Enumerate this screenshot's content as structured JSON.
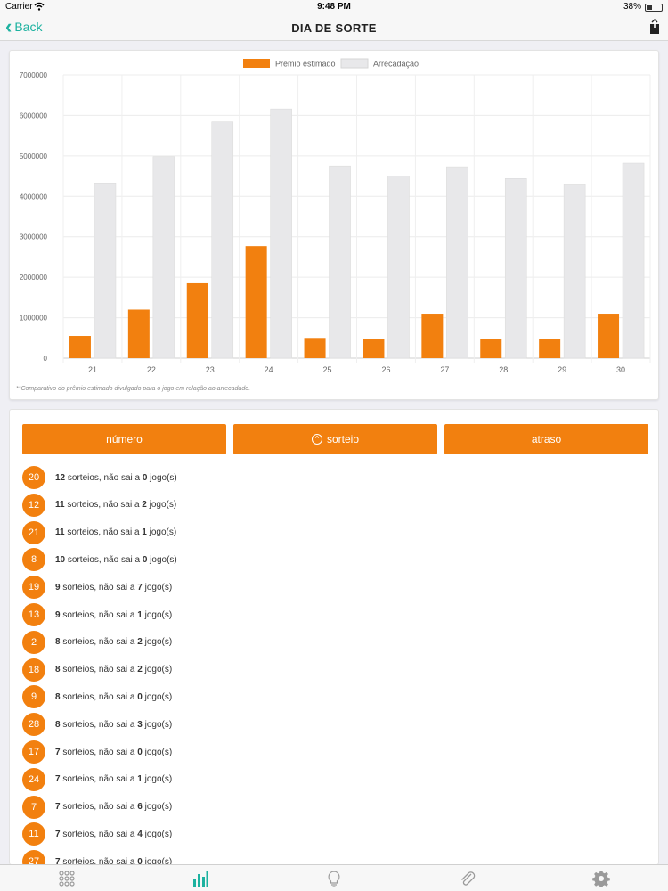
{
  "status_bar": {
    "carrier": "Carrier",
    "time": "9:48 PM",
    "battery": "38%",
    "battery_level": 0.38
  },
  "nav": {
    "back_label": "Back",
    "title": "DIA DE SORTE"
  },
  "chart_data": {
    "type": "bar",
    "categories": [
      "21",
      "22",
      "23",
      "24",
      "25",
      "26",
      "27",
      "28",
      "29",
      "30"
    ],
    "series": [
      {
        "name": "Prêmio estimado",
        "color": "#f2800f",
        "values": [
          550000,
          1200000,
          1850000,
          2770000,
          500000,
          470000,
          1100000,
          470000,
          470000,
          1100000
        ]
      },
      {
        "name": "Arrecadação",
        "color": "#e8e8ea",
        "values": [
          4330000,
          4980000,
          5840000,
          6160000,
          4750000,
          4500000,
          4730000,
          4440000,
          4290000,
          4820000
        ]
      }
    ],
    "y_ticks": [
      "0",
      "1000000",
      "2000000",
      "3000000",
      "4000000",
      "5000000",
      "6000000",
      "7000000"
    ],
    "ylim": [
      0,
      7000000
    ],
    "grid": true,
    "legend_position": "top-center",
    "note": "**Comparativo do prêmio estimado divulgado para o jogo em relação ao arrecadado."
  },
  "sort_buttons": [
    {
      "label": "número",
      "icon": ""
    },
    {
      "label": "sorteio",
      "icon": "chevron-up-circle-icon"
    },
    {
      "label": "atraso",
      "icon": ""
    }
  ],
  "ranking": [
    {
      "number": "20",
      "draws": "12",
      "draws_label": "sorteios, não sai a",
      "delay": "0",
      "delay_label": "jogo(s)"
    },
    {
      "number": "12",
      "draws": "11",
      "draws_label": "sorteios, não sai a",
      "delay": "2",
      "delay_label": "jogo(s)"
    },
    {
      "number": "21",
      "draws": "11",
      "draws_label": "sorteios, não sai a",
      "delay": "1",
      "delay_label": "jogo(s)"
    },
    {
      "number": "8",
      "draws": "10",
      "draws_label": "sorteios, não sai a",
      "delay": "0",
      "delay_label": "jogo(s)"
    },
    {
      "number": "19",
      "draws": "9",
      "draws_label": "sorteios, não sai a",
      "delay": "7",
      "delay_label": "jogo(s)"
    },
    {
      "number": "13",
      "draws": "9",
      "draws_label": "sorteios, não sai a",
      "delay": "1",
      "delay_label": "jogo(s)"
    },
    {
      "number": "2",
      "draws": "8",
      "draws_label": "sorteios, não sai a",
      "delay": "2",
      "delay_label": "jogo(s)"
    },
    {
      "number": "18",
      "draws": "8",
      "draws_label": "sorteios, não sai a",
      "delay": "2",
      "delay_label": "jogo(s)"
    },
    {
      "number": "9",
      "draws": "8",
      "draws_label": "sorteios, não sai a",
      "delay": "0",
      "delay_label": "jogo(s)"
    },
    {
      "number": "28",
      "draws": "8",
      "draws_label": "sorteios, não sai a",
      "delay": "3",
      "delay_label": "jogo(s)"
    },
    {
      "number": "17",
      "draws": "7",
      "draws_label": "sorteios, não sai a",
      "delay": "0",
      "delay_label": "jogo(s)"
    },
    {
      "number": "24",
      "draws": "7",
      "draws_label": "sorteios, não sai a",
      "delay": "1",
      "delay_label": "jogo(s)"
    },
    {
      "number": "7",
      "draws": "7",
      "draws_label": "sorteios, não sai a",
      "delay": "6",
      "delay_label": "jogo(s)"
    },
    {
      "number": "11",
      "draws": "7",
      "draws_label": "sorteios, não sai a",
      "delay": "4",
      "delay_label": "jogo(s)"
    },
    {
      "number": "27",
      "draws": "7",
      "draws_label": "sorteios, não sai a",
      "delay": "0",
      "delay_label": "jogo(s)"
    }
  ],
  "tab_bar": {
    "active_index": 1,
    "active_color": "#1db2a0",
    "inactive_color": "#9a9a9a",
    "items": [
      {
        "icon": "grid-icon"
      },
      {
        "icon": "bar-chart-icon"
      },
      {
        "icon": "lightbulb-icon"
      },
      {
        "icon": "paperclip-icon"
      },
      {
        "icon": "gear-icon"
      }
    ]
  }
}
